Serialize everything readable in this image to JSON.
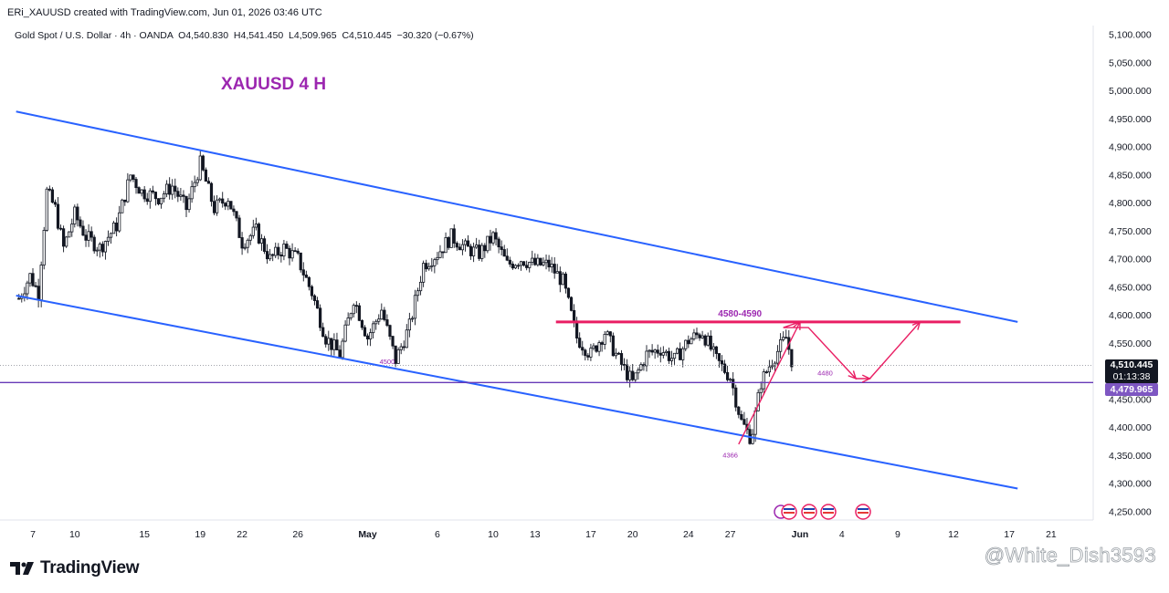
{
  "header": {
    "created": "ERi_XAUUSD created with TradingView.com, Jun 01, 2026 03:46 UTC",
    "symbol_info": "Gold Spot / U.S. Dollar · 4h · OANDA",
    "ohlc": {
      "o_label": "O",
      "o": "4,540.830",
      "h_label": "H",
      "h": "4,541.450",
      "l_label": "L",
      "l": "4,509.965",
      "c_label": "C",
      "c": "4,510.445",
      "change": "−30.320 (−0.67%)"
    }
  },
  "colors": {
    "channel": "#2962ff",
    "annotation": "#9c27b0",
    "resistance": "#e91e63",
    "price_tag_bg": "#131722",
    "support_tag_bg": "#7e57c2",
    "candle": "#131722"
  },
  "chart_data": {
    "type": "candlestick",
    "title": "XAUUSD 4 H",
    "ylim": [
      4225,
      5120
    ],
    "y_ticks": [
      {
        "value": 5100,
        "label": "5,100.000"
      },
      {
        "value": 5050,
        "label": "5,050.000"
      },
      {
        "value": 5000,
        "label": "5,000.000"
      },
      {
        "value": 4950,
        "label": "4,950.000"
      },
      {
        "value": 4900,
        "label": "4,900.000"
      },
      {
        "value": 4850,
        "label": "4,850.000"
      },
      {
        "value": 4800,
        "label": "4,800.000"
      },
      {
        "value": 4750,
        "label": "4,750.000"
      },
      {
        "value": 4700,
        "label": "4,700.000"
      },
      {
        "value": 4650,
        "label": "4,650.000"
      },
      {
        "value": 4600,
        "label": "4,600.000"
      },
      {
        "value": 4550,
        "label": "4,550.000"
      },
      {
        "value": 4450,
        "label": "4,450.000"
      },
      {
        "value": 4400,
        "label": "4,400.000"
      },
      {
        "value": 4350,
        "label": "4,350.000"
      },
      {
        "value": 4300,
        "label": "4,300.000"
      },
      {
        "value": 4250,
        "label": "4,250.000"
      }
    ],
    "x_ticks": [
      {
        "day": 7,
        "label": "7"
      },
      {
        "day": 10,
        "label": "10"
      },
      {
        "day": 15,
        "label": "15"
      },
      {
        "day": 19,
        "label": "19"
      },
      {
        "day": 22,
        "label": "22"
      },
      {
        "day": 26,
        "label": "26"
      },
      {
        "day": 31,
        "label": "May",
        "bold": true
      },
      {
        "day": 36,
        "label": "6"
      },
      {
        "day": 40,
        "label": "10"
      },
      {
        "day": 43,
        "label": "13"
      },
      {
        "day": 47,
        "label": "17"
      },
      {
        "day": 50,
        "label": "20"
      },
      {
        "day": 54,
        "label": "24"
      },
      {
        "day": 57,
        "label": "27"
      },
      {
        "day": 62,
        "label": "Jun",
        "bold": true
      },
      {
        "day": 65,
        "label": "4"
      },
      {
        "day": 69,
        "label": "9"
      },
      {
        "day": 73,
        "label": "12"
      },
      {
        "day": 77,
        "label": "17"
      },
      {
        "day": 80,
        "label": "21"
      }
    ],
    "anchors": [
      {
        "d": 6.0,
        "p": 4630
      },
      {
        "d": 6.8,
        "p": 4670
      },
      {
        "d": 7.4,
        "p": 4640
      },
      {
        "d": 8.0,
        "p": 4820
      },
      {
        "d": 8.6,
        "p": 4790
      },
      {
        "d": 9.2,
        "p": 4720
      },
      {
        "d": 10.0,
        "p": 4780
      },
      {
        "d": 10.8,
        "p": 4740
      },
      {
        "d": 11.8,
        "p": 4720
      },
      {
        "d": 13.0,
        "p": 4760
      },
      {
        "d": 14.0,
        "p": 4850
      },
      {
        "d": 14.8,
        "p": 4820
      },
      {
        "d": 16.0,
        "p": 4810
      },
      {
        "d": 17.0,
        "p": 4830
      },
      {
        "d": 18.0,
        "p": 4790
      },
      {
        "d": 19.0,
        "p": 4870
      },
      {
        "d": 20.0,
        "p": 4790
      },
      {
        "d": 21.0,
        "p": 4810
      },
      {
        "d": 22.0,
        "p": 4730
      },
      {
        "d": 23.0,
        "p": 4750
      },
      {
        "d": 24.0,
        "p": 4700
      },
      {
        "d": 25.0,
        "p": 4720
      },
      {
        "d": 26.0,
        "p": 4700
      },
      {
        "d": 27.0,
        "p": 4640
      },
      {
        "d": 28.0,
        "p": 4560
      },
      {
        "d": 29.0,
        "p": 4530
      },
      {
        "d": 30.0,
        "p": 4630
      },
      {
        "d": 31.0,
        "p": 4560
      },
      {
        "d": 32.0,
        "p": 4610
      },
      {
        "d": 33.0,
        "p": 4520
      },
      {
        "d": 34.0,
        "p": 4580
      },
      {
        "d": 35.0,
        "p": 4690
      },
      {
        "d": 36.0,
        "p": 4710
      },
      {
        "d": 37.0,
        "p": 4740
      },
      {
        "d": 38.0,
        "p": 4720
      },
      {
        "d": 39.0,
        "p": 4710
      },
      {
        "d": 40.0,
        "p": 4740
      },
      {
        "d": 41.0,
        "p": 4690
      },
      {
        "d": 42.0,
        "p": 4700
      },
      {
        "d": 43.0,
        "p": 4690
      },
      {
        "d": 44.0,
        "p": 4690
      },
      {
        "d": 45.0,
        "p": 4660
      },
      {
        "d": 46.0,
        "p": 4560
      },
      {
        "d": 47.0,
        "p": 4530
      },
      {
        "d": 48.0,
        "p": 4570
      },
      {
        "d": 49.0,
        "p": 4520
      },
      {
        "d": 50.0,
        "p": 4480
      },
      {
        "d": 51.0,
        "p": 4530
      },
      {
        "d": 52.0,
        "p": 4540
      },
      {
        "d": 53.0,
        "p": 4520
      },
      {
        "d": 54.0,
        "p": 4555
      },
      {
        "d": 55.0,
        "p": 4570
      },
      {
        "d": 56.0,
        "p": 4520
      },
      {
        "d": 57.0,
        "p": 4490
      },
      {
        "d": 57.8,
        "p": 4410
      },
      {
        "d": 58.5,
        "p": 4380
      },
      {
        "d": 59.2,
        "p": 4480
      },
      {
        "d": 60.0,
        "p": 4520
      },
      {
        "d": 61.0,
        "p": 4560
      },
      {
        "d": 61.5,
        "p": 4510
      }
    ],
    "series": [
      {
        "name": "",
        "type": "trendline",
        "points": [
          {
            "d": 5.8,
            "p": 4963
          },
          {
            "d": 77.6,
            "p": 4588
          }
        ]
      },
      {
        "name": "",
        "type": "trendline",
        "points": [
          {
            "d": 5.8,
            "p": 4635
          },
          {
            "d": 77.6,
            "p": 4291
          }
        ]
      }
    ],
    "horizontal_lines": [
      {
        "name": "support",
        "value": 4479.965
      }
    ],
    "resistance_zone": {
      "label": "4580-4590",
      "value": 4588,
      "from_day": 44.5,
      "to_day": 73.5
    },
    "projection_path": [
      {
        "d": 57.6,
        "p": 4370
      },
      {
        "d": 62.0,
        "p": 4588
      },
      {
        "d": 60.8,
        "p": 4578
      },
      {
        "d": 62.6,
        "p": 4578
      },
      {
        "d": 66.0,
        "p": 4487
      },
      {
        "d": 67.0,
        "p": 4487
      },
      {
        "d": 70.6,
        "p": 4588
      }
    ],
    "annotations": [
      {
        "label": "4500",
        "d": 32.4,
        "p": 4513
      },
      {
        "label": "4480",
        "d": 63.8,
        "p": 4493
      },
      {
        "label": "4366",
        "d": 57.0,
        "p": 4346
      }
    ],
    "current_price": {
      "value": "4,510.445",
      "countdown": "01:13:38"
    },
    "support_price_label": "4,479.965"
  },
  "footer": {
    "brand": "TradingView",
    "watermark": "@White_Dish3593"
  }
}
